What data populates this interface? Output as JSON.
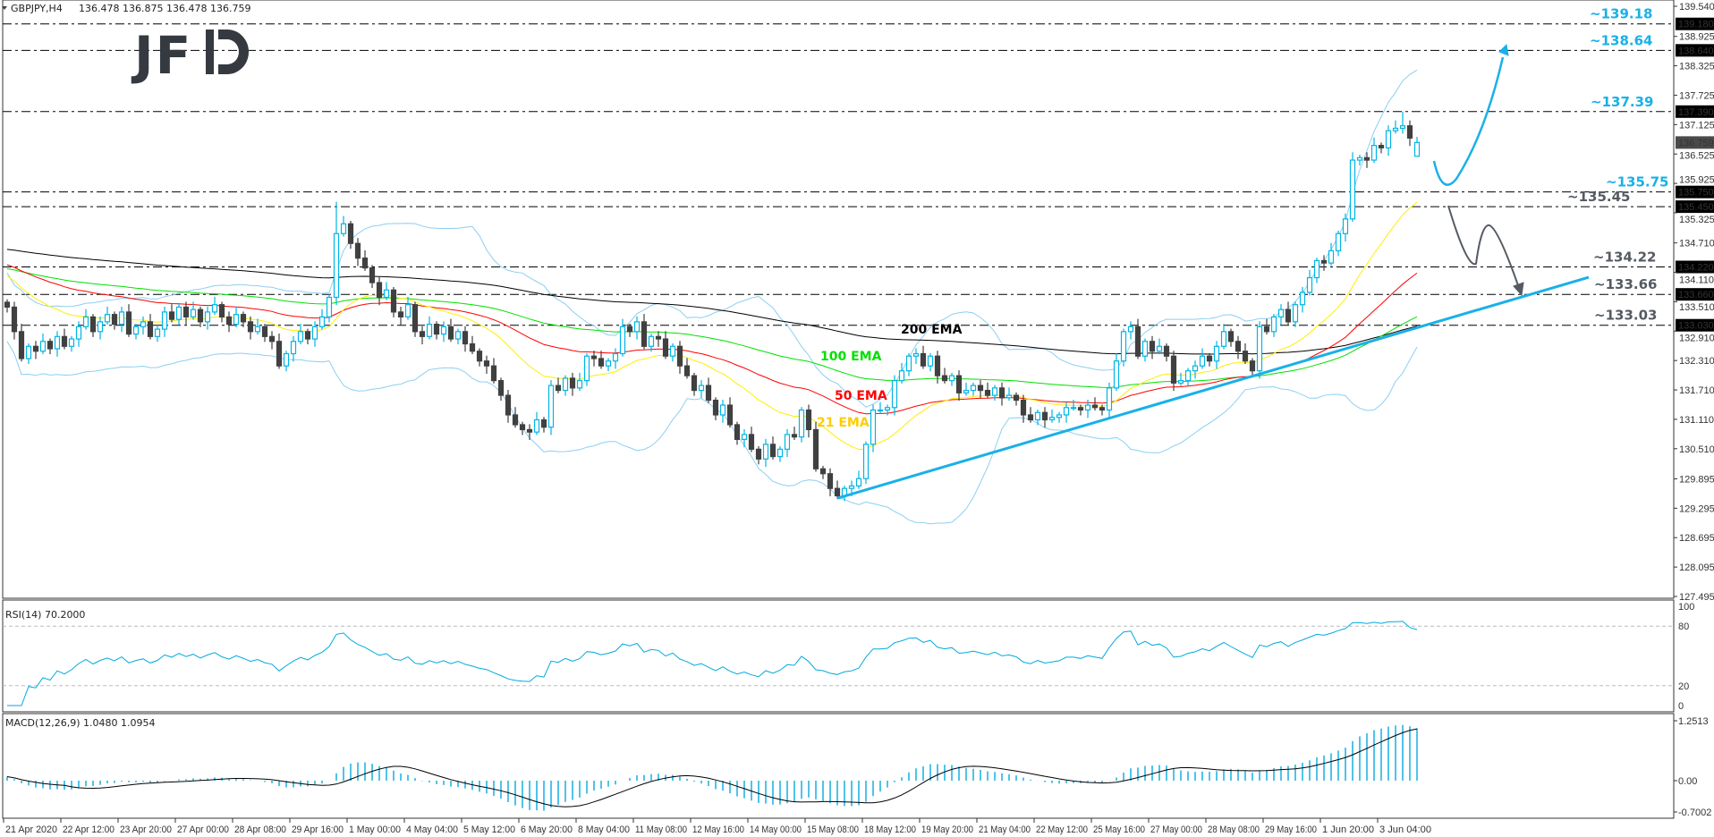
{
  "header": {
    "symbol": "GBPJPY,H4",
    "ohlc": "136.478 136.875 136.478 136.759"
  },
  "logo": "JFD",
  "colors": {
    "bull": "#00b4e6",
    "bear": "#404040",
    "bands": "#8ccff2",
    "ema21": "#ffee00",
    "ema50": "#ff0000",
    "ema100": "#00e000",
    "ema200": "#000000",
    "trendline": "#1ab0e8",
    "level_blue": "#1ab0e8",
    "level_gray": "#555b63",
    "rsi": "#00aadd",
    "macd_hist": "#4fc3ea"
  },
  "chart_data": {
    "type": "candlestick",
    "title": "GBPJPY,H4",
    "ylim": [
      127.495,
      139.54
    ],
    "price_ticks": [
      "139.540",
      "138.925",
      "138.325",
      "137.725",
      "137.125",
      "136.525",
      "135.925",
      "135.325",
      "134.710",
      "134.110",
      "133.510",
      "132.910",
      "132.310",
      "131.710",
      "131.110",
      "130.510",
      "129.895",
      "129.295",
      "128.695",
      "128.095",
      "127.495"
    ],
    "price_markers": [
      {
        "label": "139.180",
        "style": "level"
      },
      {
        "label": "138.640",
        "style": "level"
      },
      {
        "label": "137.390",
        "style": "level"
      },
      {
        "label": "136.759",
        "style": "current"
      },
      {
        "label": "135.750",
        "style": "level"
      },
      {
        "label": "135.450",
        "style": "level"
      },
      {
        "label": "134.220",
        "style": "level"
      },
      {
        "label": "133.660",
        "style": "level"
      },
      {
        "label": "133.030",
        "style": "level"
      }
    ],
    "time_ticks": [
      "21 Apr 2020",
      "22 Apr 12:00",
      "23 Apr 20:00",
      "27 Apr 00:00",
      "28 Apr 08:00",
      "29 Apr 16:00",
      "1 May 00:00",
      "4 May 04:00",
      "5 May 12:00",
      "6 May 20:00",
      "8 May 04:00",
      "11 May 08:00",
      "12 May 16:00",
      "14 May 00:00",
      "15 May 08:00",
      "18 May 12:00",
      "19 May 20:00",
      "21 May 04:00",
      "22 May 12:00",
      "25 May 16:00",
      "27 May 00:00",
      "28 May 08:00",
      "29 May 16:00",
      "1 Jun 20:00",
      "3 Jun 04:00"
    ],
    "close": [
      133.4,
      132.9,
      132.35,
      132.6,
      132.5,
      132.7,
      132.55,
      132.8,
      132.6,
      132.75,
      133.0,
      133.2,
      132.9,
      133.1,
      133.25,
      133.05,
      133.3,
      132.85,
      133.0,
      133.1,
      132.8,
      132.95,
      133.3,
      133.15,
      133.4,
      133.2,
      133.35,
      133.1,
      133.3,
      133.45,
      133.2,
      133.05,
      133.25,
      133.1,
      132.9,
      133.0,
      132.8,
      132.7,
      132.2,
      132.45,
      132.7,
      132.9,
      132.75,
      133.0,
      133.2,
      133.6,
      134.9,
      135.1,
      134.7,
      134.4,
      134.2,
      133.9,
      133.6,
      133.75,
      133.3,
      133.2,
      133.45,
      132.9,
      132.8,
      133.05,
      132.85,
      133.0,
      132.75,
      132.9,
      132.65,
      132.5,
      132.3,
      132.2,
      131.9,
      131.6,
      131.2,
      131.0,
      130.9,
      130.85,
      131.1,
      130.95,
      131.8,
      131.7,
      131.95,
      131.75,
      131.9,
      132.4,
      132.35,
      132.2,
      132.3,
      132.45,
      133.0,
      132.9,
      133.1,
      132.6,
      132.8,
      132.75,
      132.4,
      132.6,
      132.2,
      132.0,
      131.7,
      131.8,
      131.5,
      131.2,
      131.4,
      131.0,
      130.7,
      130.8,
      130.5,
      130.3,
      130.6,
      130.35,
      130.5,
      130.8,
      130.75,
      131.3,
      130.9,
      130.1,
      130.0,
      129.7,
      129.55,
      129.7,
      129.75,
      129.9,
      130.6,
      131.3,
      131.3,
      131.35,
      131.9,
      132.1,
      132.4,
      132.45,
      132.2,
      132.4,
      132.0,
      131.9,
      132.0,
      131.65,
      131.7,
      131.8,
      131.7,
      131.6,
      131.75,
      131.55,
      131.6,
      131.5,
      131.2,
      131.1,
      131.25,
      131.1,
      131.15,
      131.2,
      131.35,
      131.35,
      131.3,
      131.4,
      131.35,
      131.3,
      131.75,
      132.3,
      132.9,
      133.0,
      132.4,
      132.7,
      132.5,
      132.6,
      132.4,
      131.85,
      131.9,
      132.1,
      132.2,
      132.4,
      132.3,
      132.6,
      132.9,
      132.7,
      132.5,
      132.3,
      132.1,
      133.0,
      132.9,
      133.2,
      133.35,
      133.1,
      133.45,
      133.7,
      134.0,
      134.35,
      134.3,
      134.55,
      134.9,
      135.2,
      136.4,
      136.45,
      136.4,
      136.7,
      136.65,
      137.0,
      137.05,
      137.1,
      136.85,
      136.759
    ],
    "last_bar": {
      "open": 136.478,
      "high": 136.875,
      "low": 136.478,
      "close": 136.759
    },
    "notable_highs": [
      {
        "bar": 46,
        "high": 135.55
      },
      {
        "bar": 195,
        "high": 137.39
      }
    ],
    "levels": [
      {
        "value": 139.18,
        "label": "~139.18",
        "color": "blue"
      },
      {
        "value": 138.64,
        "label": "~138.64",
        "color": "blue"
      },
      {
        "value": 137.39,
        "label": "~137.39",
        "color": "blue"
      },
      {
        "value": 135.75,
        "label": "~135.75",
        "color": "blue"
      },
      {
        "value": 135.45,
        "label": "~135.45",
        "color": "gray"
      },
      {
        "value": 134.22,
        "label": "~134.22",
        "color": "gray"
      },
      {
        "value": 133.66,
        "label": "~133.66",
        "color": "gray"
      },
      {
        "value": 133.03,
        "label": "~133.03",
        "color": "gray"
      }
    ],
    "trendline": {
      "from": {
        "bar": 116,
        "price": 129.5
      },
      "to": {
        "bar": 221,
        "price": 134.01
      }
    },
    "ema_labels": {
      "ema200": "200 EMA",
      "ema100": "100 EMA",
      "ema50": "50 EMA",
      "ema21": "21 EMA"
    },
    "rsi": {
      "label": "RSI(14) 70.2000",
      "period": 14,
      "ticks": [
        "100",
        "80",
        "20",
        "0"
      ],
      "levels": [
        80,
        20
      ]
    },
    "macd": {
      "label": "MACD(12,26,9) 1.0480 1.0954",
      "ticks": [
        "1.2513",
        "0.00",
        "-0.7002"
      ],
      "ylim": [
        -0.7002,
        1.2513
      ]
    }
  }
}
